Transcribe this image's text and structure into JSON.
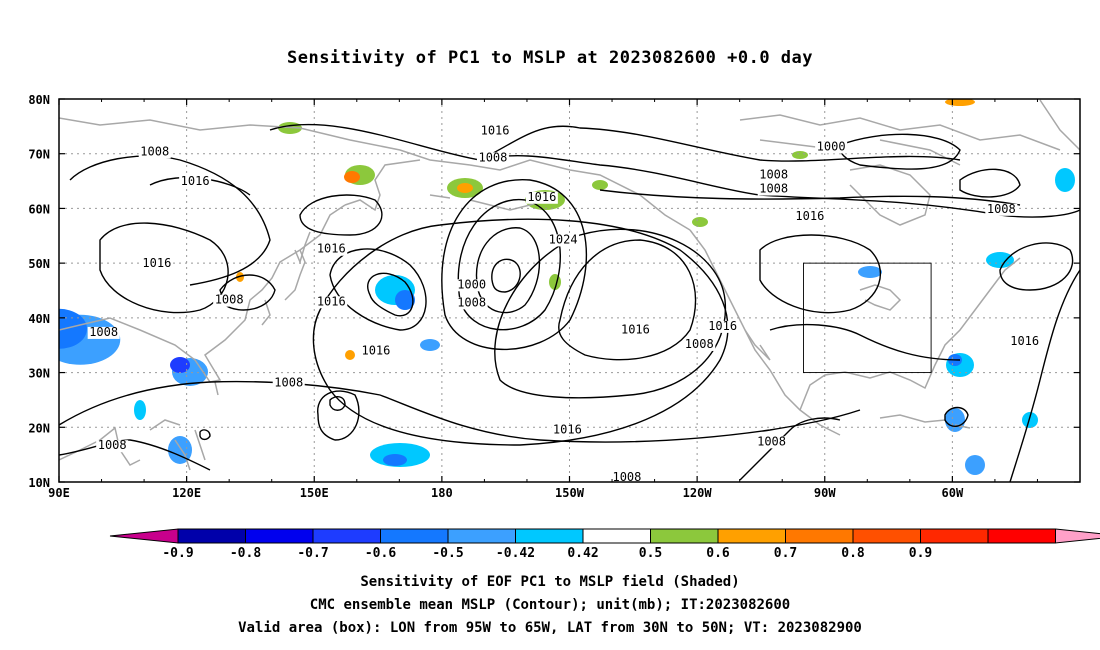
{
  "title": "Sensitivity of PC1 to MSLP at 2023082600 +0.0 day",
  "map": {
    "lat_ticks": [
      "10N",
      "20N",
      "30N",
      "40N",
      "50N",
      "60N",
      "70N",
      "80N"
    ],
    "lon_ticks": [
      "90E",
      "120E",
      "150E",
      "180",
      "150W",
      "120W",
      "90W",
      "60W"
    ],
    "lat_range": [
      10,
      80
    ],
    "lon_range_east": [
      90,
      330
    ],
    "grid": "dotted",
    "valid_box": {
      "lon_w": "95W",
      "lon_e": "65W",
      "lat_s": "30N",
      "lat_n": "50N"
    }
  },
  "contours": {
    "unit": "mb",
    "labels": [
      {
        "text": "1016",
        "lon": 192.5,
        "lat": 73.5
      },
      {
        "text": "1008",
        "lon": 192.0,
        "lat": 68.6
      },
      {
        "text": "1008",
        "lon": 112.5,
        "lat": 69.7
      },
      {
        "text": "1016",
        "lon": 122.0,
        "lat": 64.3
      },
      {
        "text": "1016",
        "lon": 203.5,
        "lat": 61.4
      },
      {
        "text": "1000",
        "lon": 271.5,
        "lat": 70.6
      },
      {
        "text": "1008",
        "lon": 258.0,
        "lat": 65.5
      },
      {
        "text": "1008",
        "lon": 258.0,
        "lat": 62.9
      },
      {
        "text": "1016",
        "lon": 266.5,
        "lat": 57.9
      },
      {
        "text": "1008",
        "lon": 311.5,
        "lat": 59.2
      },
      {
        "text": "1024",
        "lon": 208.5,
        "lat": 53.6
      },
      {
        "text": "1016",
        "lon": 113.0,
        "lat": 49.3
      },
      {
        "text": "1016",
        "lon": 154.0,
        "lat": 51.9
      },
      {
        "text": "1008",
        "lon": 130.0,
        "lat": 42.6
      },
      {
        "text": "1016",
        "lon": 154.0,
        "lat": 42.3
      },
      {
        "text": "1000",
        "lon": 187.0,
        "lat": 45.4
      },
      {
        "text": "1008",
        "lon": 187.0,
        "lat": 42.1
      },
      {
        "text": "1008",
        "lon": 100.5,
        "lat": 36.7
      },
      {
        "text": "1016",
        "lon": 164.5,
        "lat": 33.3
      },
      {
        "text": "1016",
        "lon": 225.5,
        "lat": 37.1
      },
      {
        "text": "1016",
        "lon": 246.0,
        "lat": 37.8
      },
      {
        "text": "1008",
        "lon": 240.5,
        "lat": 34.5
      },
      {
        "text": "1016",
        "lon": 317.0,
        "lat": 35.0
      },
      {
        "text": "1008",
        "lon": 144.0,
        "lat": 27.5
      },
      {
        "text": "1016",
        "lon": 209.5,
        "lat": 18.9
      },
      {
        "text": "1008",
        "lon": 102.5,
        "lat": 16.0
      },
      {
        "text": "1008",
        "lon": 257.5,
        "lat": 16.7
      },
      {
        "text": "1008",
        "lon": 223.5,
        "lat": 10.2
      }
    ]
  },
  "colorbar": {
    "ticks": [
      "-0.9",
      "-0.8",
      "-0.7",
      "-0.6",
      "-0.5",
      "-0.42",
      "0.42",
      "0.5",
      "0.6",
      "0.7",
      "0.8",
      "0.9"
    ],
    "colors": [
      "#c8008c",
      "#0000aa",
      "#0000ee",
      "#1e3cff",
      "#1478ff",
      "#3ca0ff",
      "#00c8ff",
      "#ffffff",
      "#8cc83c",
      "#ffa000",
      "#ff7800",
      "#ff5000",
      "#ff2800",
      "#ff0000",
      "#ffa0c8"
    ]
  },
  "footer": {
    "line1": "Sensitivity of EOF PC1 to MSLP field (Shaded)",
    "line2": "CMC ensemble mean MSLP (Contour); unit(mb); IT:2023082600",
    "line3": "Valid area (box): LON from 95W to 65W, LAT from 30N to 50N; VT: 2023082900"
  }
}
